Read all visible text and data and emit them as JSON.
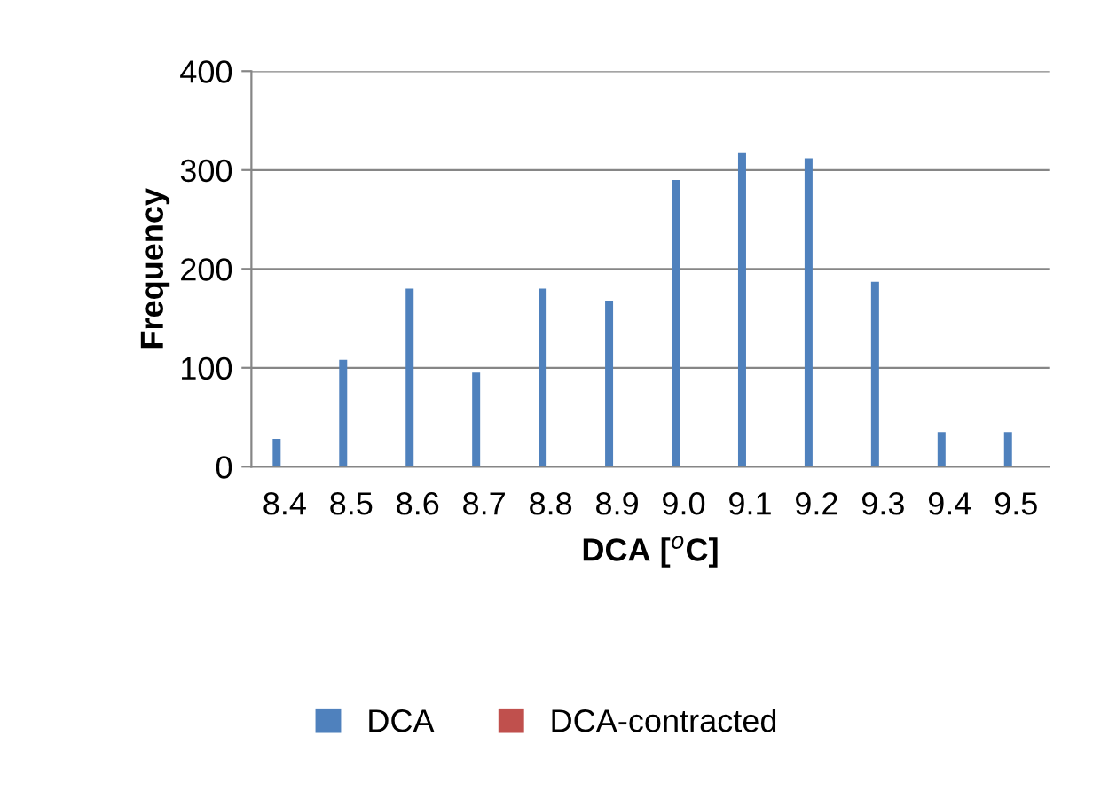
{
  "chart_data": {
    "type": "bar",
    "xlabel": "DCA [$^{o}$C]",
    "ylabel": "Frequency",
    "categories": [
      "8.4",
      "8.5",
      "8.6",
      "8.7",
      "8.8",
      "8.9",
      "9.0",
      "9.1",
      "9.2",
      "9.3",
      "9.4",
      "9.5"
    ],
    "series": [
      {
        "name": "DCA",
        "color": "#4f81bd",
        "values": [
          28,
          108,
          180,
          95,
          180,
          168,
          290,
          318,
          312,
          187,
          35,
          35
        ]
      },
      {
        "name": "DCA-contracted",
        "color": "#c0504d",
        "values": [
          0,
          0,
          0,
          0,
          0,
          0,
          0,
          0,
          0,
          0,
          0,
          0
        ]
      }
    ],
    "ylim": [
      0,
      400
    ],
    "yticks": [
      0,
      100,
      200,
      300,
      400
    ],
    "grid": "y",
    "legend": "bottom"
  }
}
